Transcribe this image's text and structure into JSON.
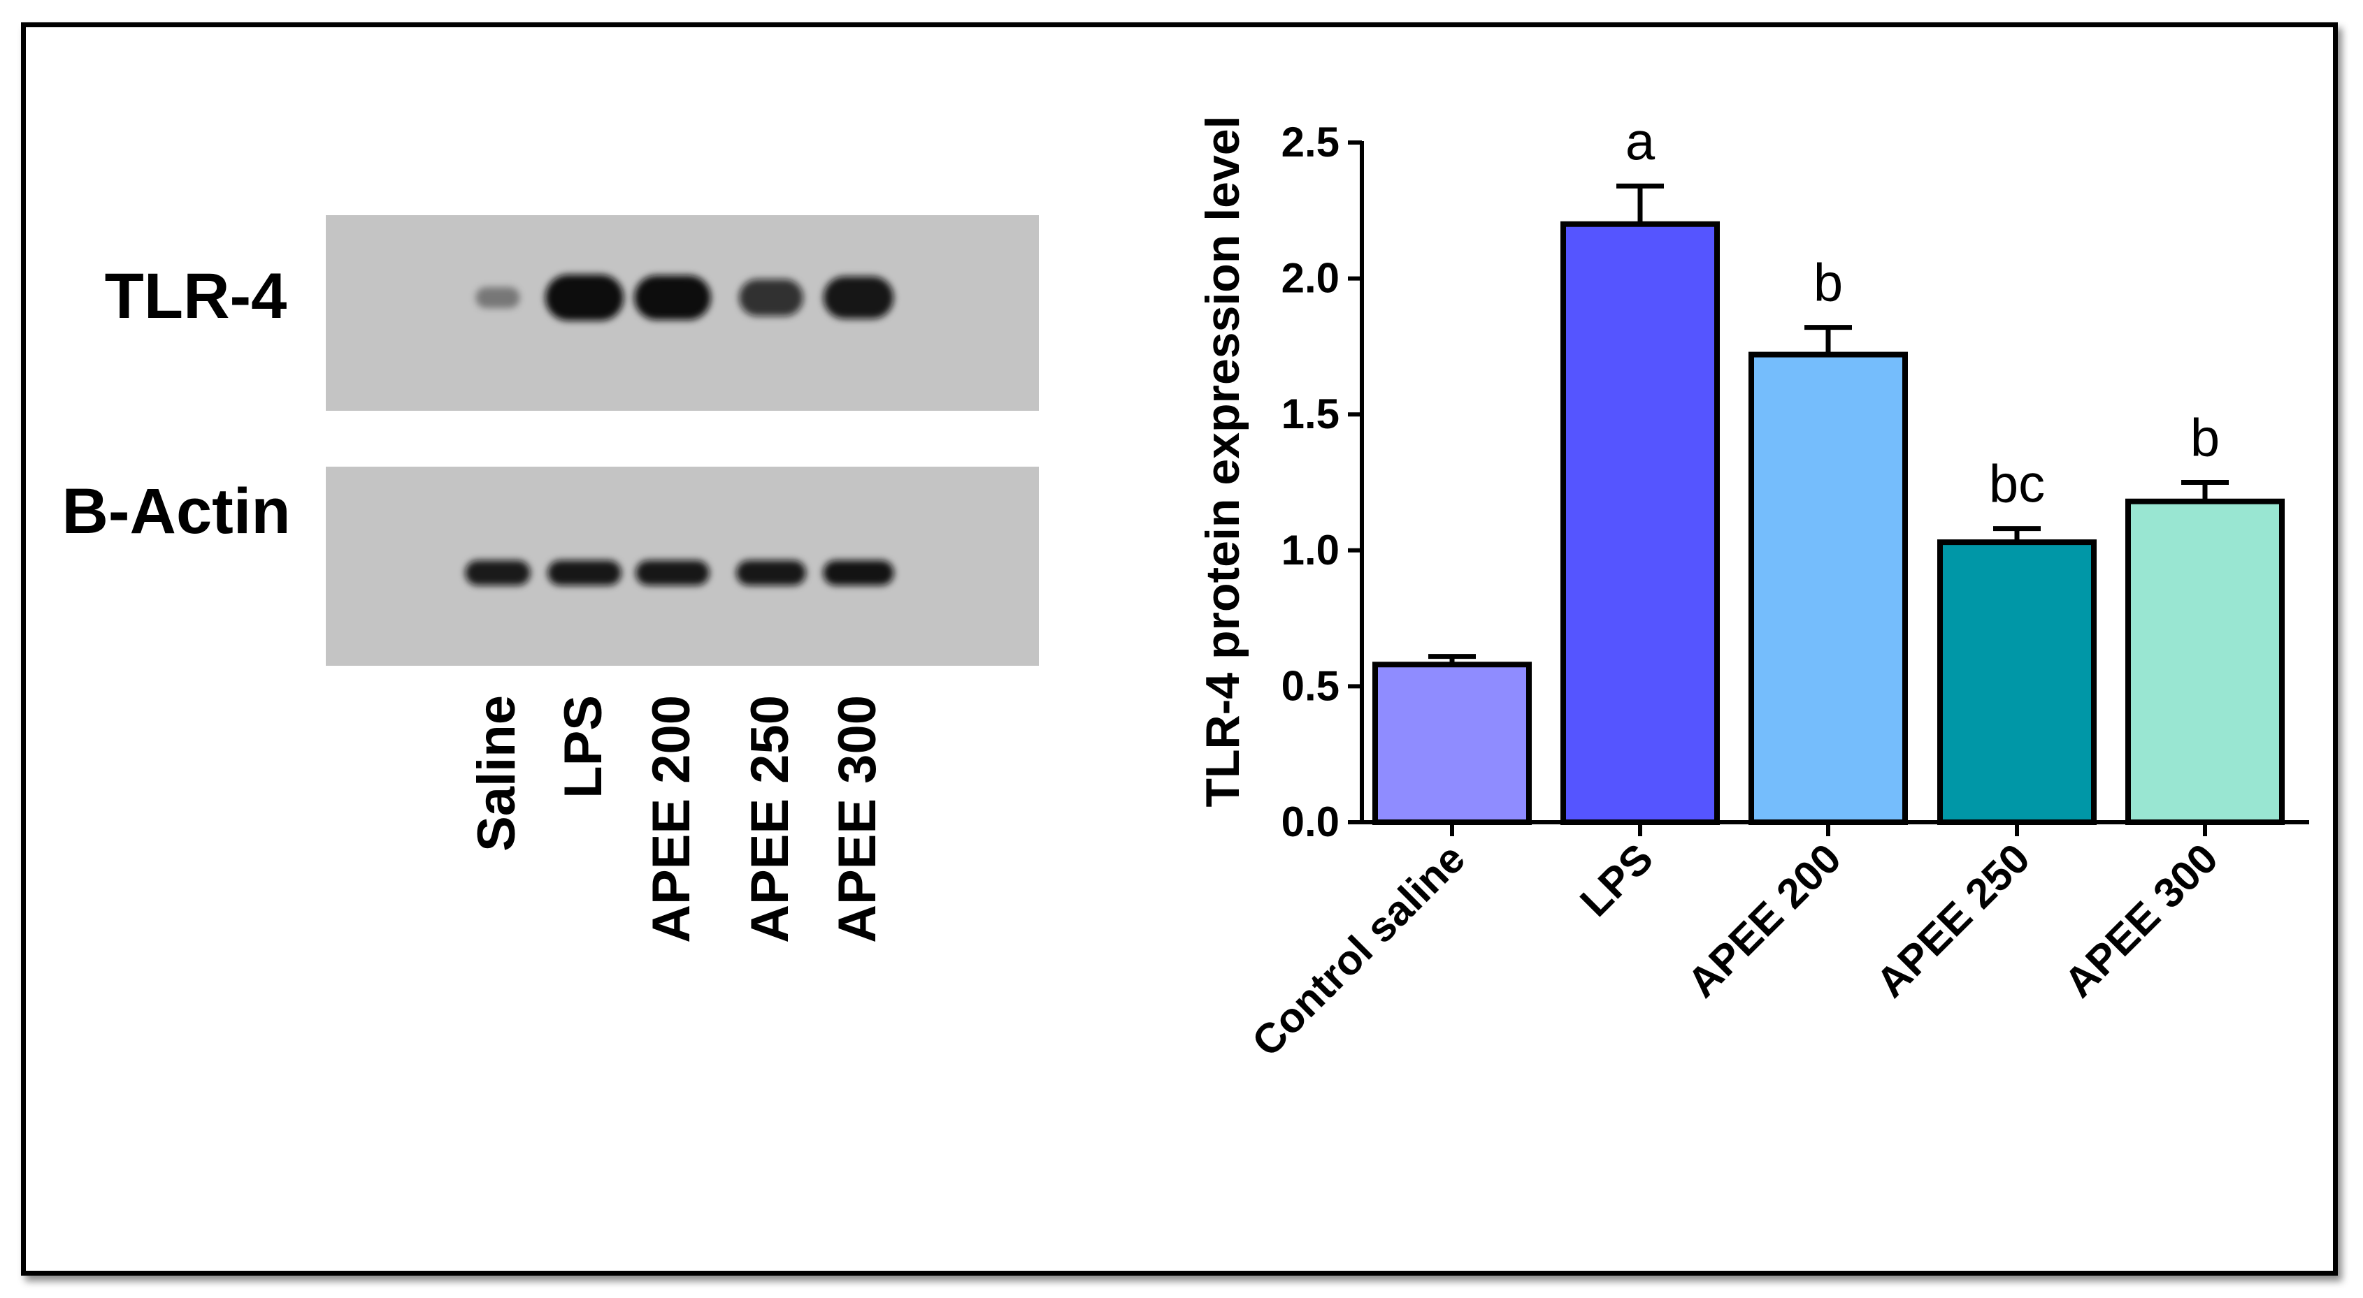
{
  "blot": {
    "rows": [
      {
        "label": "TLR-4",
        "intensities": [
          0.18,
          1.0,
          0.95,
          0.7,
          0.88
        ]
      },
      {
        "label": "B-Actin",
        "intensities": [
          0.85,
          0.87,
          0.87,
          0.87,
          0.9
        ]
      }
    ],
    "lanes": [
      "Saline",
      "LPS",
      "APEE 200",
      "APEE 250",
      "APEE 300"
    ],
    "panel_color": "#c4c4c4",
    "band_color": "#101010"
  },
  "chart_data": {
    "type": "bar",
    "categories": [
      "Control saline",
      "LPS",
      "APEE 200",
      "APEE 250",
      "APEE 300"
    ],
    "values": [
      0.58,
      2.2,
      1.72,
      1.03,
      1.18
    ],
    "errors": [
      0.03,
      0.14,
      0.1,
      0.05,
      0.07
    ],
    "significance": [
      "",
      "a",
      "b",
      "bc",
      "b"
    ],
    "colors": [
      "#8f8cff",
      "#5555ff",
      "#75bdfc",
      "#0097a7",
      "#99e6d2"
    ],
    "ylabel": "TLR-4 protein expression level",
    "xlabel": "",
    "ylim": [
      0,
      2.5
    ],
    "yticks": [
      0.0,
      0.5,
      1.0,
      1.5,
      2.0,
      2.5
    ],
    "ytick_labels": [
      "0.0",
      "0.5",
      "1.0",
      "1.5",
      "2.0",
      "2.5"
    ]
  }
}
